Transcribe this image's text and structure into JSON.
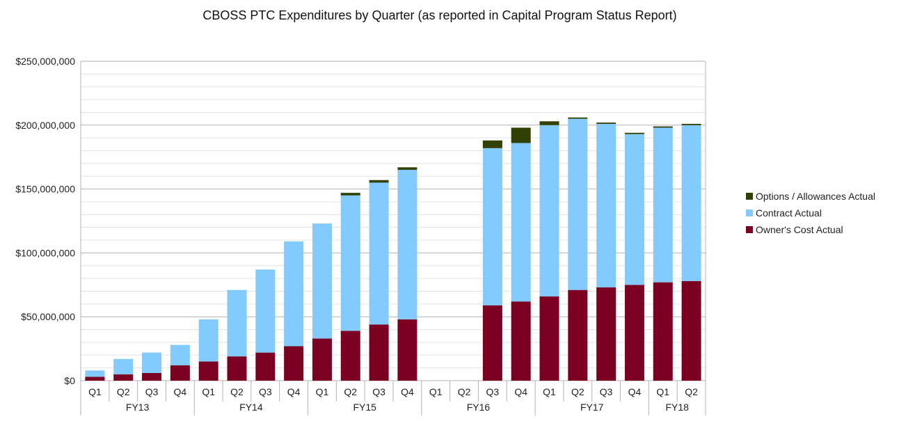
{
  "chart_data": {
    "type": "bar",
    "stacked": true,
    "title": "CBOSS PTC Expenditures by Quarter (as reported in Capital Program Status Report)",
    "xlabel": "",
    "ylabel": "",
    "ylim": [
      0,
      250000000
    ],
    "yticks": [
      0,
      50000000,
      100000000,
      150000000,
      200000000,
      250000000
    ],
    "ytick_labels": [
      "$0",
      "$50,000,000",
      "$100,000,000",
      "$150,000,000",
      "$200,000,000",
      "$250,000,000"
    ],
    "grid": true,
    "legend_position": "right",
    "categories": [
      "Q1",
      "Q2",
      "Q3",
      "Q4",
      "Q1",
      "Q2",
      "Q3",
      "Q4",
      "Q1",
      "Q2",
      "Q3",
      "Q4",
      "Q1",
      "Q2",
      "Q3",
      "Q4",
      "Q1",
      "Q2",
      "Q3",
      "Q4",
      "Q1",
      "Q2"
    ],
    "groups": [
      {
        "label": "FY13",
        "count": 4
      },
      {
        "label": "FY14",
        "count": 4
      },
      {
        "label": "FY15",
        "count": 4
      },
      {
        "label": "FY16",
        "count": 4
      },
      {
        "label": "FY17",
        "count": 4
      },
      {
        "label": "FY18",
        "count": 2
      }
    ],
    "series": [
      {
        "name": "Owner's Cost Actual",
        "color": "#7b0022",
        "values": [
          3000000,
          5000000,
          6000000,
          12000000,
          15000000,
          19000000,
          22000000,
          27000000,
          33000000,
          39000000,
          44000000,
          48000000,
          0,
          0,
          59000000,
          62000000,
          66000000,
          71000000,
          73000000,
          75000000,
          77000000,
          78000000
        ]
      },
      {
        "name": "Contract Actual",
        "color": "#83caff",
        "values": [
          5000000,
          12000000,
          16000000,
          16000000,
          33000000,
          52000000,
          65000000,
          82000000,
          90000000,
          106000000,
          111000000,
          117000000,
          0,
          0,
          123000000,
          124000000,
          134000000,
          134000000,
          128000000,
          118000000,
          121000000,
          122000000
        ]
      },
      {
        "name": "Options / Allowances Actual",
        "color": "#314004",
        "values": [
          0,
          0,
          0,
          0,
          0,
          0,
          0,
          0,
          0,
          2000000,
          2000000,
          2000000,
          0,
          0,
          6000000,
          12000000,
          3000000,
          1000000,
          1000000,
          1000000,
          1000000,
          1000000
        ]
      }
    ]
  }
}
